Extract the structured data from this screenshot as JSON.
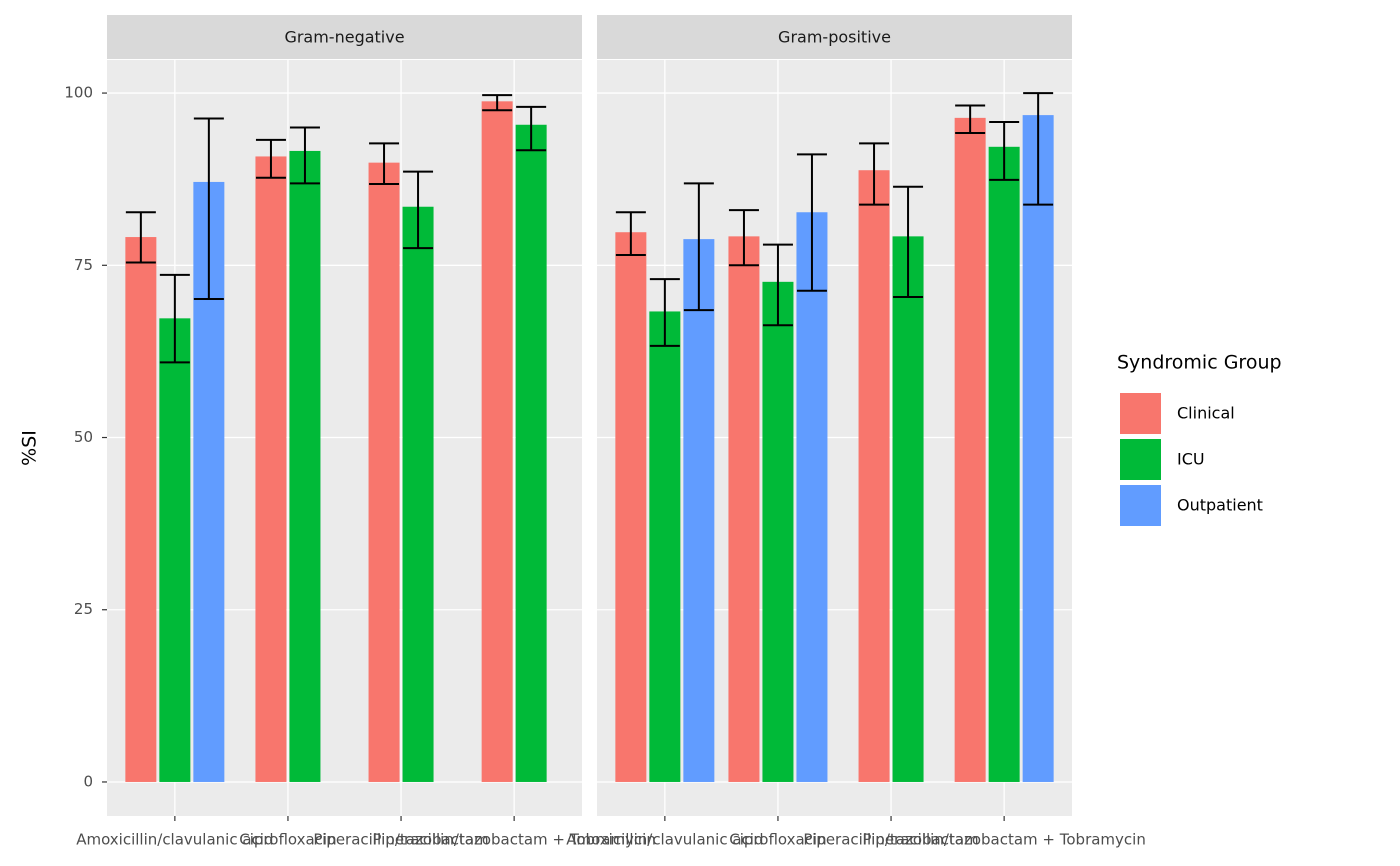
{
  "chart_data": {
    "type": "bar",
    "y_label": "%SI",
    "legend_title": "Syndromic Group",
    "ylim": [
      -4.94,
      104.8
    ],
    "yticks": [
      0,
      25,
      50,
      75,
      100
    ],
    "grid": true,
    "series_names": [
      "Clinical",
      "ICU",
      "Outpatient"
    ],
    "colors": [
      "#f8766d",
      "#00ba38",
      "#619cff"
    ],
    "facets": [
      {
        "title": "Gram-negative",
        "categories": [
          "Amoxicillin/clavulanic acid",
          "Ciprofloxacin",
          "Piperacillin/tazobactam",
          "Piperacillin/tazobactam + Tobramycin"
        ],
        "series": [
          {
            "values": [
              79.1,
              90.8,
              89.9,
              98.8
            ],
            "errors": [
              [
                75.4,
                82.7
              ],
              [
                87.7,
                93.2
              ],
              [
                86.8,
                92.7
              ],
              [
                97.5,
                99.7
              ]
            ]
          },
          {
            "values": [
              67.3,
              91.6,
              83.5,
              95.4
            ],
            "errors": [
              [
                60.9,
                73.6
              ],
              [
                86.9,
                95.0
              ],
              [
                77.5,
                88.6
              ],
              [
                91.7,
                98.0
              ]
            ]
          },
          {
            "values": [
              87.1,
              null,
              null,
              null
            ],
            "errors": [
              [
                70.1,
                96.3
              ],
              null,
              null,
              null
            ]
          }
        ]
      },
      {
        "title": "Gram-positive",
        "categories": [
          "Amoxicillin/clavulanic acid",
          "Ciprofloxacin",
          "Piperacillin/tazobactam",
          "Piperacillin/tazobactam + Tobramycin"
        ],
        "series": [
          {
            "values": [
              79.8,
              79.2,
              88.8,
              96.4
            ],
            "errors": [
              [
                76.5,
                82.7
              ],
              [
                75.0,
                83.0
              ],
              [
                83.8,
                92.7
              ],
              [
                94.2,
                98.2
              ]
            ]
          },
          {
            "values": [
              68.3,
              72.6,
              79.2,
              92.2
            ],
            "errors": [
              [
                63.3,
                73.0
              ],
              [
                66.3,
                78.0
              ],
              [
                70.4,
                86.4
              ],
              [
                87.4,
                95.8
              ]
            ]
          },
          {
            "values": [
              78.8,
              82.7,
              null,
              96.8
            ],
            "errors": [
              [
                68.5,
                86.9
              ],
              [
                71.3,
                91.1
              ],
              null,
              [
                83.8,
                100
              ]
            ]
          }
        ]
      }
    ]
  }
}
